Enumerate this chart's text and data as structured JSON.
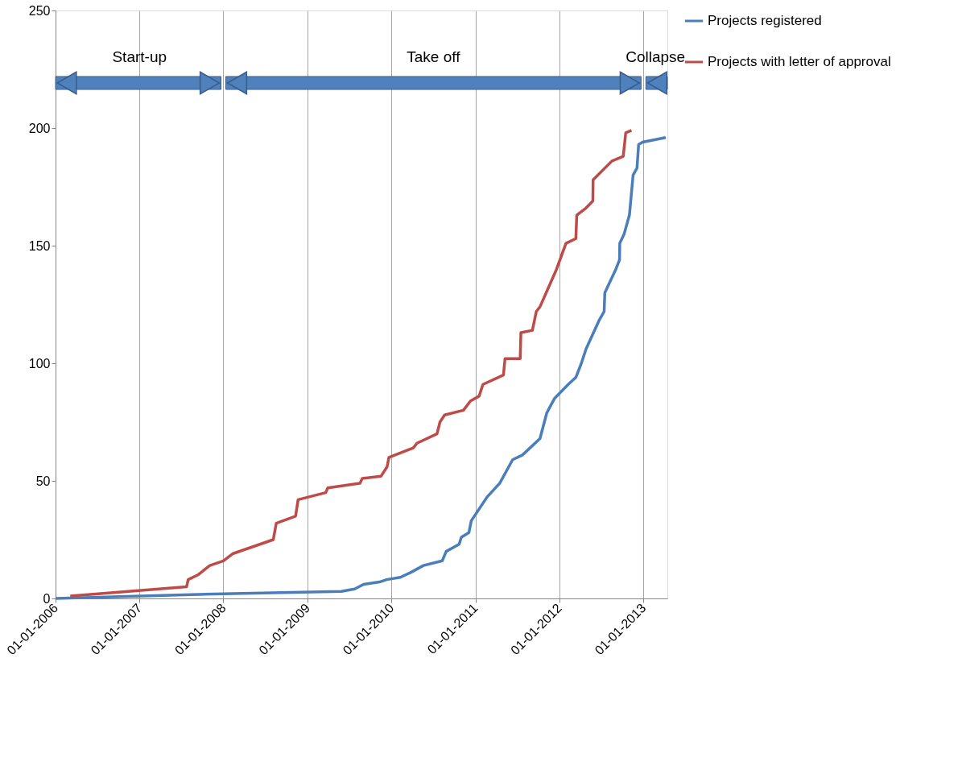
{
  "chart_data": {
    "type": "line",
    "xlim": [
      "2006-01-01",
      "2013-04-15"
    ],
    "xticks": [
      {
        "value": "2006-01-01",
        "label": "01-01-2006"
      },
      {
        "value": "2007-01-01",
        "label": "01-01-2007"
      },
      {
        "value": "2008-01-01",
        "label": "01-01-2008"
      },
      {
        "value": "2009-01-01",
        "label": "01-01-2009"
      },
      {
        "value": "2010-01-01",
        "label": "01-01-2010"
      },
      {
        "value": "2011-01-01",
        "label": "01-01-2011"
      },
      {
        "value": "2012-01-01",
        "label": "01-01-2012"
      },
      {
        "value": "2013-01-01",
        "label": "01-01-2013"
      }
    ],
    "ylim": [
      0,
      250
    ],
    "yticks": [
      0,
      50,
      100,
      150,
      200,
      250
    ],
    "grid": "x",
    "legend": "right",
    "marker": "none",
    "line_style": "solid",
    "series": [
      {
        "name": "Projects registered",
        "color": "#4a7ebb",
        "x": [
          "2006-01-01",
          "2008-01-01",
          "2009-05-28",
          "2009-07-25",
          "2009-09-02",
          "2009-11-10",
          "2009-12-11",
          "2010-02-09",
          "2010-03-25",
          "2010-05-20",
          "2010-08-10",
          "2010-08-27",
          "2010-10-22",
          "2010-11-01",
          "2010-12-04",
          "2010-12-14",
          "2011-02-20",
          "2011-04-17",
          "2011-06-12",
          "2011-07-25",
          "2011-10-09",
          "2011-11-08",
          "2011-12-11",
          "2012-02-09",
          "2012-03-13",
          "2012-04-06",
          "2012-04-26",
          "2012-06-21",
          "2012-07-14",
          "2012-07-17",
          "2012-09-03",
          "2012-09-19",
          "2012-09-20",
          "2012-10-09",
          "2012-11-01",
          "2012-11-17",
          "2012-12-04",
          "2012-12-11",
          "2012-12-28",
          "2013-04-08"
        ],
        "values": [
          0,
          2,
          3,
          4,
          6,
          7,
          8,
          9,
          11,
          14,
          16,
          20,
          23,
          26,
          28,
          33,
          43,
          49,
          59,
          61,
          68,
          79,
          85,
          91,
          94,
          100,
          106,
          118,
          122,
          130,
          140,
          144,
          151,
          155,
          163,
          180,
          183,
          193,
          194,
          196
        ]
      },
      {
        "name": "Projects with letter of approval",
        "color": "#be4b48",
        "x": [
          "2006-03-06",
          "2007-07-25",
          "2007-08-01",
          "2007-09-12",
          "2007-11-03",
          "2008-01-01",
          "2008-02-10",
          "2008-08-05",
          "2008-08-18",
          "2008-11-10",
          "2008-11-21",
          "2009-03-21",
          "2009-03-30",
          "2009-08-17",
          "2009-08-27",
          "2009-11-17",
          "2009-12-13",
          "2009-12-21",
          "2010-04-06",
          "2010-04-22",
          "2010-07-18",
          "2010-07-31",
          "2010-08-20",
          "2010-11-10",
          "2010-12-11",
          "2011-01-17",
          "2011-02-03",
          "2011-05-03",
          "2011-05-10",
          "2011-07-15",
          "2011-07-18",
          "2011-09-06",
          "2011-09-23",
          "2011-10-09",
          "2011-12-20",
          "2012-01-30",
          "2012-03-13",
          "2012-03-17",
          "2012-04-26",
          "2012-05-26",
          "2012-05-27",
          "2012-08-17",
          "2012-10-05",
          "2012-10-16",
          "2012-11-10"
        ],
        "values": [
          1,
          5,
          8,
          10,
          14,
          16,
          19,
          25,
          32,
          35,
          42,
          45,
          47,
          49,
          51,
          52,
          56,
          60,
          64,
          66,
          70,
          75,
          78,
          80,
          84,
          86,
          91,
          95,
          102,
          102,
          113,
          114,
          122,
          124,
          140,
          151,
          153,
          163,
          166,
          169,
          178,
          186,
          188,
          198,
          199
        ]
      }
    ],
    "annotations": [
      "Start-up",
      "Take off",
      "Collapse"
    ]
  }
}
